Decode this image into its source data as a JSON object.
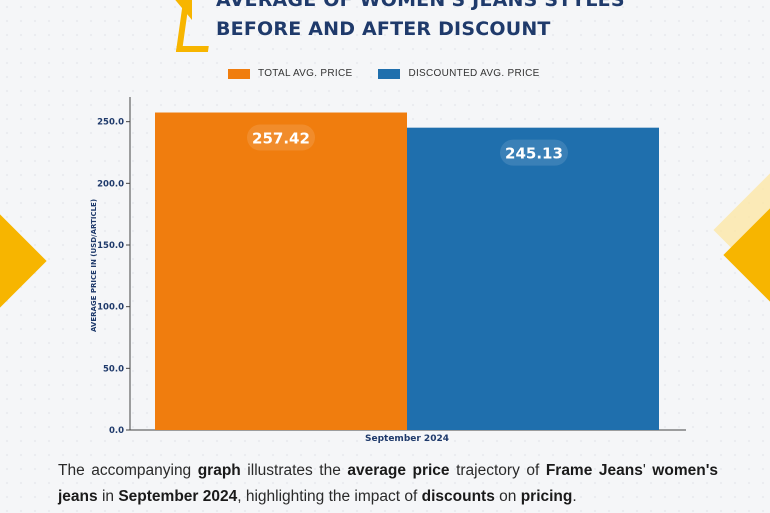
{
  "header": {
    "title_line1": "AVERAGE OF WOMEN'S JEANS STYLES",
    "title_line2": "BEFORE AND AFTER DISCOUNT"
  },
  "colors": {
    "total": "#f07d0e",
    "discounted": "#1f6fad",
    "accent": "#f7b500"
  },
  "chart_data": {
    "type": "bar",
    "title": "AVERAGE OF WOMEN'S JEANS STYLES BEFORE AND AFTER DISCOUNT",
    "categories": [
      "September 2024"
    ],
    "series": [
      {
        "name": "TOTAL AVG. PRICE",
        "values": [
          257.42
        ],
        "label": "257.42"
      },
      {
        "name": "DISCOUNTED AVG. PRICE",
        "values": [
          245.13
        ],
        "label": "245.13"
      }
    ],
    "xlabel": "",
    "ylabel": "AVERAGE PRICE IN (USD/ARTICLE)",
    "ylim": [
      0,
      270
    ],
    "yticks": [
      0,
      50,
      100,
      150,
      200,
      250
    ],
    "ytick_labels": [
      "0.0",
      "50.0",
      "100.0",
      "150.0",
      "200.0",
      "250.0"
    ],
    "legend_position": "top-center",
    "grid": false
  },
  "caption": {
    "p1": "The accompanying ",
    "b1": "graph",
    "p2": " illustrates the ",
    "b2": "average price",
    "p3": " trajectory of ",
    "b3": "Frame Jeans",
    "p4": "' ",
    "b4": "women's jeans",
    "p5": " in ",
    "b5": "September 2024",
    "p6": ", highlighting the impact of ",
    "b6": "discounts",
    "p7": " on ",
    "b7": "pricing",
    "p8": "."
  }
}
